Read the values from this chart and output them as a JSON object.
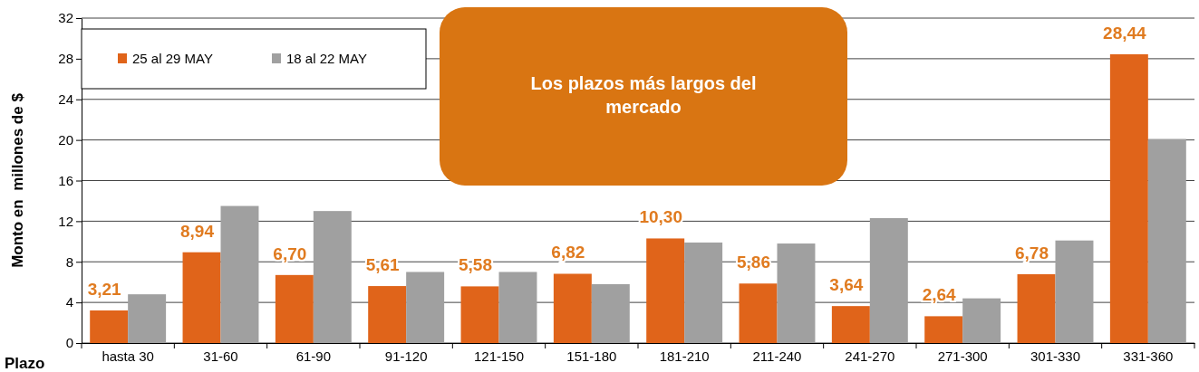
{
  "chart_data": {
    "type": "bar",
    "xlabel": "Plazo",
    "ylabel": "Monto en  millones de $",
    "categories": [
      "hasta 30",
      "31-60",
      "61-90",
      "91-120",
      "121-150",
      "151-180",
      "181-210",
      "211-240",
      "241-270",
      "271-300",
      "301-330",
      "331-360"
    ],
    "series": [
      {
        "name": "25 al 29 MAY",
        "color": "#e0641a",
        "values": [
          3.21,
          8.94,
          6.7,
          5.61,
          5.58,
          6.82,
          10.3,
          5.86,
          3.64,
          2.64,
          6.78,
          28.44
        ],
        "value_labels": [
          "3,21",
          "8,94",
          "6,70",
          "5,61",
          "5,58",
          "6,82",
          "10,30",
          "5,86",
          "3,64",
          "2,64",
          "6,78",
          "28,44"
        ]
      },
      {
        "name": "18 al 22 MAY",
        "color": "#a0a0a0",
        "values": [
          4.8,
          13.5,
          13.0,
          7.0,
          7.0,
          5.8,
          9.9,
          9.8,
          12.3,
          4.4,
          10.1,
          20.1
        ]
      }
    ],
    "ylim": [
      0,
      32
    ],
    "yticks": [
      0,
      4,
      8,
      12,
      16,
      20,
      24,
      28,
      32
    ],
    "grid": "y",
    "legend": "top left",
    "annotations": [
      "Los plazos más largos del mercado"
    ]
  }
}
